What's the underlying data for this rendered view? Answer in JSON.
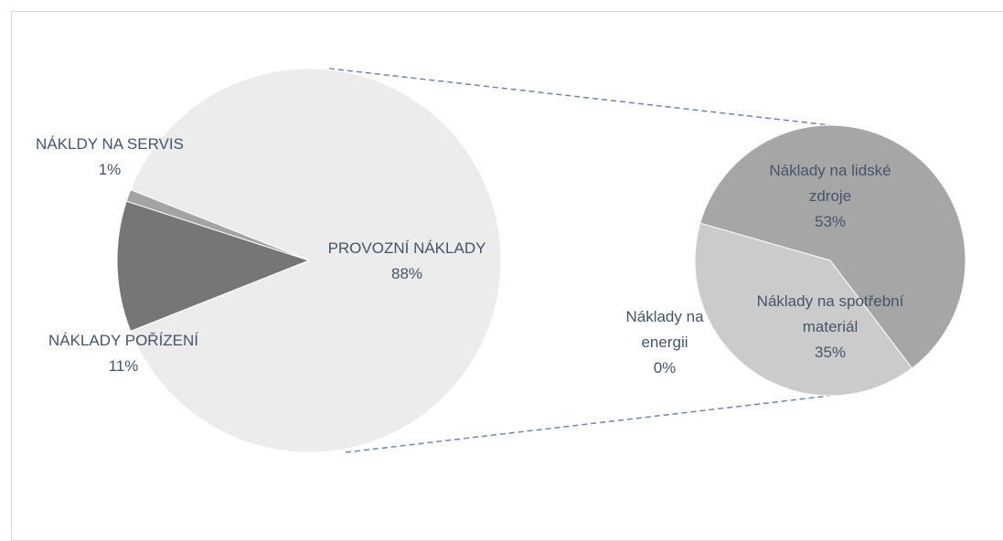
{
  "chart_data": [
    {
      "type": "pie",
      "categories": [
        "PROVOZNÍ NÁKLADY",
        "NÁKLADY POŘÍZENÍ",
        "NÁKLDY NA SERVIS"
      ],
      "values": [
        88,
        11,
        1
      ],
      "value_labels": [
        "88%",
        "11%",
        "1%"
      ],
      "colors": [
        "#ececec",
        "#767676",
        "#a3a3a3"
      ]
    },
    {
      "type": "pie",
      "categories": [
        "Náklady na lidské zdroje",
        "Náklady na spotřební materiál",
        "Náklady na energii"
      ],
      "values": [
        53,
        35,
        0
      ],
      "value_labels": [
        "53%",
        "35%",
        "0%"
      ],
      "colors": [
        "#a6a6a6",
        "#cbcbcb",
        "#8c8c8c"
      ]
    }
  ]
}
